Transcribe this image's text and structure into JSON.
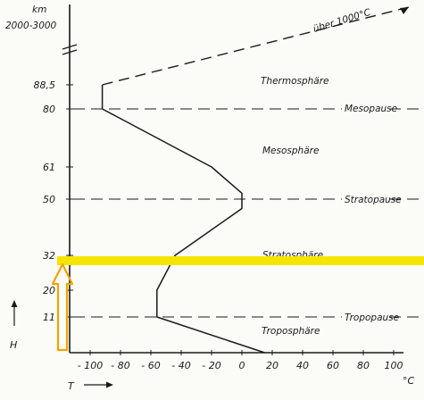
{
  "chart_data": {
    "type": "line",
    "xlabel": "T",
    "xunit": "°C",
    "ylabel": "H",
    "yunit": "km",
    "x_ticks": [
      -100,
      -80,
      -60,
      -40,
      -20,
      0,
      20,
      40,
      60,
      80,
      100
    ],
    "y_ticks": [
      {
        "value": 11,
        "label": "11"
      },
      {
        "value": 20,
        "label": "20"
      },
      {
        "value": 32,
        "label": "32"
      },
      {
        "value": 50,
        "label": "50"
      },
      {
        "value": 61,
        "label": "61"
      },
      {
        "value": 80,
        "label": "80"
      },
      {
        "value": 88.5,
        "label": "88,5"
      }
    ],
    "y_top_label": "2000-3000",
    "series": [
      {
        "values": [
          {
            "x": 15,
            "y": 0
          },
          {
            "x": -56,
            "y": 11
          },
          {
            "x": -56,
            "y": 20
          },
          {
            "x": -44,
            "y": 32
          },
          {
            "x": 0,
            "y": 47
          },
          {
            "x": 0,
            "y": 52
          },
          {
            "x": -20,
            "y": 61
          },
          {
            "x": -92,
            "y": 80
          },
          {
            "x": -92,
            "y": 88.5
          }
        ]
      }
    ],
    "thermosphere_trend": {
      "label": "über 1000°C",
      "from": {
        "x": -92,
        "y": 88.5
      }
    },
    "boundaries": [
      {
        "y": 11,
        "label": "Tropopause"
      },
      {
        "y": 50,
        "label": "Stratopause"
      },
      {
        "y": 80,
        "label": "Mesopause"
      }
    ],
    "layers": [
      {
        "label": "Troposphäre"
      },
      {
        "label": "Stratosphäre"
      },
      {
        "label": "Mesosphäre"
      },
      {
        "label": "Thermosphäre"
      }
    ],
    "highlight": {
      "y": 32,
      "color": "#f5e400"
    },
    "arrow_color": "#f0a400",
    "ink_color": "#1a1a1a"
  }
}
